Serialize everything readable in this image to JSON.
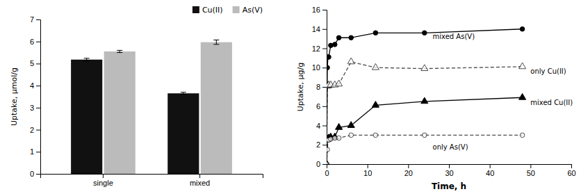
{
  "chart_data": [
    {
      "type": "bar",
      "categories": [
        "single",
        "mixed"
      ],
      "series": [
        {
          "name": "Cu(II)",
          "color": "#111111",
          "values": [
            5.18,
            3.65
          ],
          "errors": [
            0.06,
            0.05
          ]
        },
        {
          "name": "As(V)",
          "color": "#bbbbbb",
          "values": [
            5.55,
            5.97
          ],
          "errors": [
            0.05,
            0.1
          ]
        }
      ],
      "ylim": [
        0,
        7
      ],
      "yticks": [
        0,
        1,
        2,
        3,
        4,
        5,
        6,
        7
      ],
      "y_label": "Uptake, μmol/g",
      "legend": "upper right",
      "grid": false
    },
    {
      "type": "line",
      "x": [
        0,
        0.17,
        0.33,
        0.5,
        1,
        2,
        3,
        6,
        12,
        24,
        48
      ],
      "series": [
        {
          "color": "#000000",
          "marker": "circle",
          "line_style": "solid",
          "values": [
            0,
            10.0,
            11.1,
            11.1,
            12.3,
            12.4,
            13.1,
            13.1,
            13.6,
            13.6,
            14.0
          ]
        },
        {
          "color": "#000000",
          "marker": "triangle-open",
          "line_style": "dashed",
          "values": [
            0,
            8.1,
            8.1,
            8.2,
            8.2,
            8.2,
            8.3,
            10.6,
            10.0,
            9.9,
            10.1
          ]
        },
        {
          "color": "#000000",
          "marker": "triangle",
          "line_style": "solid",
          "values": [
            0,
            2.6,
            2.6,
            2.7,
            2.8,
            2.8,
            3.8,
            4.0,
            6.1,
            6.5,
            6.9
          ]
        },
        {
          "color": "#000000",
          "marker": "circle-open",
          "line_style": "dashed",
          "values": [
            0,
            1.5,
            2.5,
            2.5,
            2.6,
            2.7,
            2.7,
            3.0,
            3.0,
            3.0,
            3.0
          ]
        }
      ],
      "xlim": [
        0,
        60
      ],
      "xticks": [
        0,
        10,
        20,
        30,
        40,
        50,
        60
      ],
      "ylim": [
        0,
        16
      ],
      "yticks": [
        0,
        2,
        4,
        6,
        8,
        10,
        12,
        14,
        16
      ],
      "x_label": "Time, h",
      "y_label": "Uptake, μg/g",
      "annotations": [
        {
          "text": "mixed As(V)",
          "x": 26,
          "y": 13.2
        },
        {
          "text": "only Cu(II)",
          "x": 50,
          "y": 9.6
        },
        {
          "text": "mixed Cu(II)",
          "x": 50,
          "y": 6.35
        },
        {
          "text": "only As(V)",
          "x": 26,
          "y": 1.8
        }
      ],
      "grid": false
    }
  ]
}
